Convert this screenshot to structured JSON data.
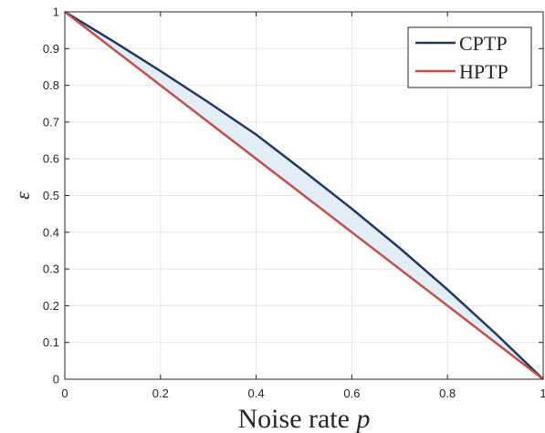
{
  "chart_data": {
    "type": "line",
    "xlabel_text": "Noise rate ",
    "xlabel_var": "p",
    "ylabel": "ε",
    "xlim": [
      0,
      1
    ],
    "ylim": [
      0,
      1
    ],
    "xticks": [
      0,
      0.2,
      0.4,
      0.6,
      0.8,
      1
    ],
    "xtick_labels": [
      "0",
      "0.2",
      "0.4",
      "0.6",
      "0.8",
      "1"
    ],
    "yticks": [
      0,
      0.1,
      0.2,
      0.3,
      0.4,
      0.5,
      0.6,
      0.7,
      0.8,
      0.9,
      1
    ],
    "ytick_labels": [
      "0",
      "0.1",
      "0.2",
      "0.3",
      "0.4",
      "0.5",
      "0.6",
      "0.7",
      "0.8",
      "0.9",
      "1"
    ],
    "grid": true,
    "legend_position": "top-right",
    "shaded_between_series": true,
    "fill_color": "#e3edf5",
    "series": [
      {
        "name": "CPTP",
        "color": "#1f3864",
        "x": [
          0,
          0.1,
          0.2,
          0.3,
          0.4,
          0.5,
          0.6,
          0.7,
          0.8,
          0.9,
          1
        ],
        "y": [
          1,
          0.921,
          0.839,
          0.754,
          0.666,
          0.566,
          0.464,
          0.357,
          0.244,
          0.125,
          0
        ]
      },
      {
        "name": "HPTP",
        "color": "#c0504d",
        "x": [
          0,
          1
        ],
        "y": [
          1,
          0
        ]
      }
    ]
  }
}
